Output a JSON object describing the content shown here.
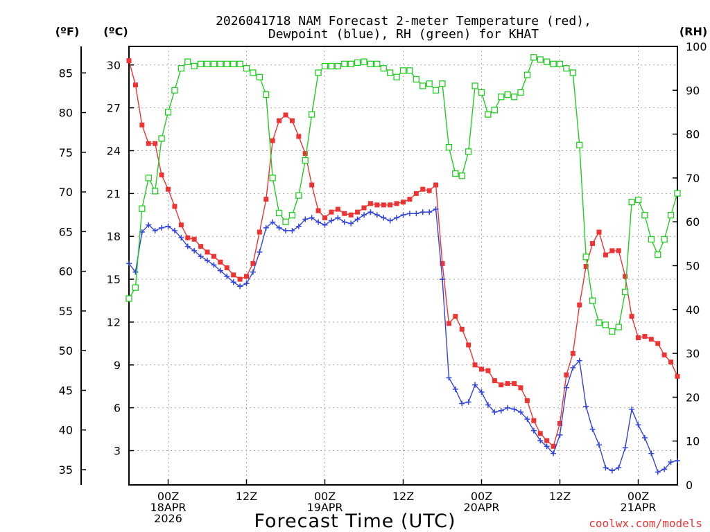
{
  "chart_data": {
    "type": "line",
    "title_line1": "2026041718 NAM Forecast 2-meter Temperature (red),",
    "title_line2": "Dewpoint (blue), RH (green) for KHAT",
    "xlabel": "Forecast Time (UTC)",
    "credit": "coolwx.com/models",
    "units": {
      "fahrenheit": "(ºF)",
      "celsius": "(ºC)",
      "rh": "(RH)"
    },
    "x_hours_range": [
      0,
      84
    ],
    "celsius_range": [
      0.6,
      31.3
    ],
    "rh_range": [
      0,
      100
    ],
    "x_ticks": [
      {
        "hour": 6,
        "labels": [
          "00Z",
          "18APR",
          "2026"
        ]
      },
      {
        "hour": 18,
        "labels": [
          "12Z"
        ]
      },
      {
        "hour": 30,
        "labels": [
          "00Z",
          "19APR"
        ]
      },
      {
        "hour": 42,
        "labels": [
          "12Z"
        ]
      },
      {
        "hour": 54,
        "labels": [
          "00Z",
          "20APR"
        ]
      },
      {
        "hour": 66,
        "labels": [
          "12Z"
        ]
      },
      {
        "hour": 78,
        "labels": [
          "00Z",
          "21APR"
        ]
      }
    ],
    "celsius_ticks": [
      "3",
      "6",
      "9",
      "12",
      "15",
      "18",
      "21",
      "24",
      "27",
      "30"
    ],
    "fahrenheit_ticks": [
      "35",
      "40",
      "45",
      "50",
      "55",
      "60",
      "65",
      "70",
      "75",
      "80",
      "85"
    ],
    "rh_ticks": [
      "0",
      "10",
      "20",
      "30",
      "40",
      "50",
      "60",
      "70",
      "80",
      "90",
      "100"
    ],
    "series": [
      {
        "name": "Temperature",
        "color": "#ee3333",
        "marker": "filled-square",
        "hours": [
          0,
          1,
          2,
          3,
          4,
          5,
          6,
          7,
          8,
          9,
          10,
          11,
          12,
          13,
          14,
          15,
          16,
          17,
          18,
          19,
          20,
          21,
          22,
          23,
          24,
          25,
          26,
          27,
          28,
          29,
          30,
          31,
          32,
          33,
          34,
          35,
          36,
          37,
          38,
          39,
          40,
          41,
          42,
          43,
          44,
          45,
          46,
          47,
          48,
          49,
          50,
          51,
          52,
          53,
          54,
          55,
          56,
          57,
          58,
          59,
          60,
          61,
          62,
          63,
          64,
          65,
          66,
          67,
          68,
          69,
          70,
          71,
          72,
          73,
          74,
          75,
          76,
          77,
          78,
          79,
          80,
          81,
          82,
          83,
          84
        ],
        "values": [
          30.3,
          28.6,
          25.8,
          24.5,
          24.5,
          22.3,
          21.3,
          20.1,
          18.8,
          17.9,
          17.8,
          17.3,
          16.9,
          16.6,
          16.2,
          15.8,
          15.3,
          15.0,
          15.2,
          16.1,
          18.3,
          20.6,
          24.7,
          26.1,
          26.5,
          26.1,
          25.0,
          23.8,
          21.6,
          19.8,
          19.3,
          19.7,
          19.9,
          19.6,
          19.5,
          19.7,
          20.0,
          20.3,
          20.2,
          20.2,
          20.2,
          20.3,
          20.4,
          20.6,
          21.0,
          21.3,
          21.2,
          21.6,
          16.1,
          11.9,
          12.4,
          11.5,
          10.4,
          9.0,
          8.7,
          8.6,
          7.9,
          7.6,
          7.7,
          7.7,
          7.4,
          6.5,
          5.1,
          4.2,
          3.7,
          3.3,
          4.9,
          8.3,
          9.8,
          13.2,
          15.9,
          17.5,
          18.3,
          16.7,
          17.0,
          17.0,
          15.2,
          12.4,
          10.9,
          11.0,
          10.8,
          10.5,
          9.7,
          9.2,
          8.2
        ]
      },
      {
        "name": "Dewpoint",
        "color": "#3344dd",
        "marker": "plus",
        "hours": [
          0,
          1,
          2,
          3,
          4,
          5,
          6,
          7,
          8,
          9,
          10,
          11,
          12,
          13,
          14,
          15,
          16,
          17,
          18,
          19,
          20,
          21,
          22,
          23,
          24,
          25,
          26,
          27,
          28,
          29,
          30,
          31,
          32,
          33,
          34,
          35,
          36,
          37,
          38,
          39,
          40,
          41,
          42,
          43,
          44,
          45,
          46,
          47,
          48,
          49,
          50,
          51,
          52,
          53,
          54,
          55,
          56,
          57,
          58,
          59,
          60,
          61,
          62,
          63,
          64,
          65,
          66,
          67,
          68,
          69,
          70,
          71,
          72,
          73,
          74,
          75,
          76,
          77,
          78,
          79,
          80,
          81,
          82,
          83,
          84
        ],
        "values": [
          16.1,
          15.5,
          18.3,
          18.8,
          18.4,
          18.6,
          18.7,
          18.4,
          17.9,
          17.3,
          17.0,
          16.6,
          16.3,
          16.0,
          15.6,
          15.2,
          14.8,
          14.5,
          14.7,
          15.5,
          16.9,
          18.6,
          19.0,
          18.6,
          18.4,
          18.4,
          18.7,
          19.2,
          19.3,
          19.0,
          18.8,
          19.1,
          19.3,
          19.0,
          18.9,
          19.2,
          19.5,
          19.7,
          19.5,
          19.3,
          19.1,
          19.3,
          19.5,
          19.6,
          19.6,
          19.7,
          19.7,
          19.9,
          15.0,
          8.1,
          7.3,
          6.3,
          6.4,
          7.6,
          7.1,
          6.2,
          5.7,
          5.8,
          6.0,
          5.9,
          5.7,
          5.2,
          4.4,
          3.7,
          3.3,
          2.8,
          4.1,
          7.4,
          8.8,
          9.3,
          6.1,
          4.5,
          3.4,
          1.8,
          1.6,
          1.8,
          3.2,
          5.9,
          4.8,
          3.9,
          2.8,
          1.5,
          1.7,
          2.2,
          2.3
        ]
      },
      {
        "name": "RH",
        "color": "#22cc22",
        "marker": "open-square",
        "hours": [
          0,
          1,
          2,
          3,
          4,
          5,
          6,
          7,
          8,
          9,
          10,
          11,
          12,
          13,
          14,
          15,
          16,
          17,
          18,
          19,
          20,
          21,
          22,
          23,
          24,
          25,
          26,
          27,
          28,
          29,
          30,
          31,
          32,
          33,
          34,
          35,
          36,
          37,
          38,
          39,
          40,
          41,
          42,
          43,
          44,
          45,
          46,
          47,
          48,
          49,
          50,
          51,
          52,
          53,
          54,
          55,
          56,
          57,
          58,
          59,
          60,
          61,
          62,
          63,
          64,
          65,
          66,
          67,
          68,
          69,
          70,
          71,
          72,
          73,
          74,
          75,
          76,
          77,
          78,
          79,
          80,
          81,
          82,
          83,
          84
        ],
        "values": [
          42.5,
          45,
          63,
          70,
          67,
          79,
          85,
          90,
          95,
          96.5,
          95.5,
          96,
          96,
          96,
          96,
          96,
          96,
          96,
          95,
          94,
          93,
          89,
          70,
          62,
          60,
          61.5,
          66,
          74,
          84.5,
          94,
          95.5,
          95.5,
          95.5,
          96,
          96,
          96.3,
          96.5,
          96,
          96,
          95,
          94,
          93,
          94.5,
          94.5,
          92.5,
          91,
          91.5,
          90,
          91.5,
          77,
          71,
          70.5,
          76,
          91,
          89.5,
          84.5,
          85.5,
          88.5,
          89,
          88.5,
          89.5,
          93.5,
          97.5,
          97,
          96.5,
          96,
          96,
          95,
          94,
          77.5,
          52,
          42,
          37,
          36.5,
          35,
          36,
          44,
          64.5,
          65,
          61.5,
          56,
          52.5,
          56,
          61.5,
          66.5
        ]
      }
    ]
  }
}
